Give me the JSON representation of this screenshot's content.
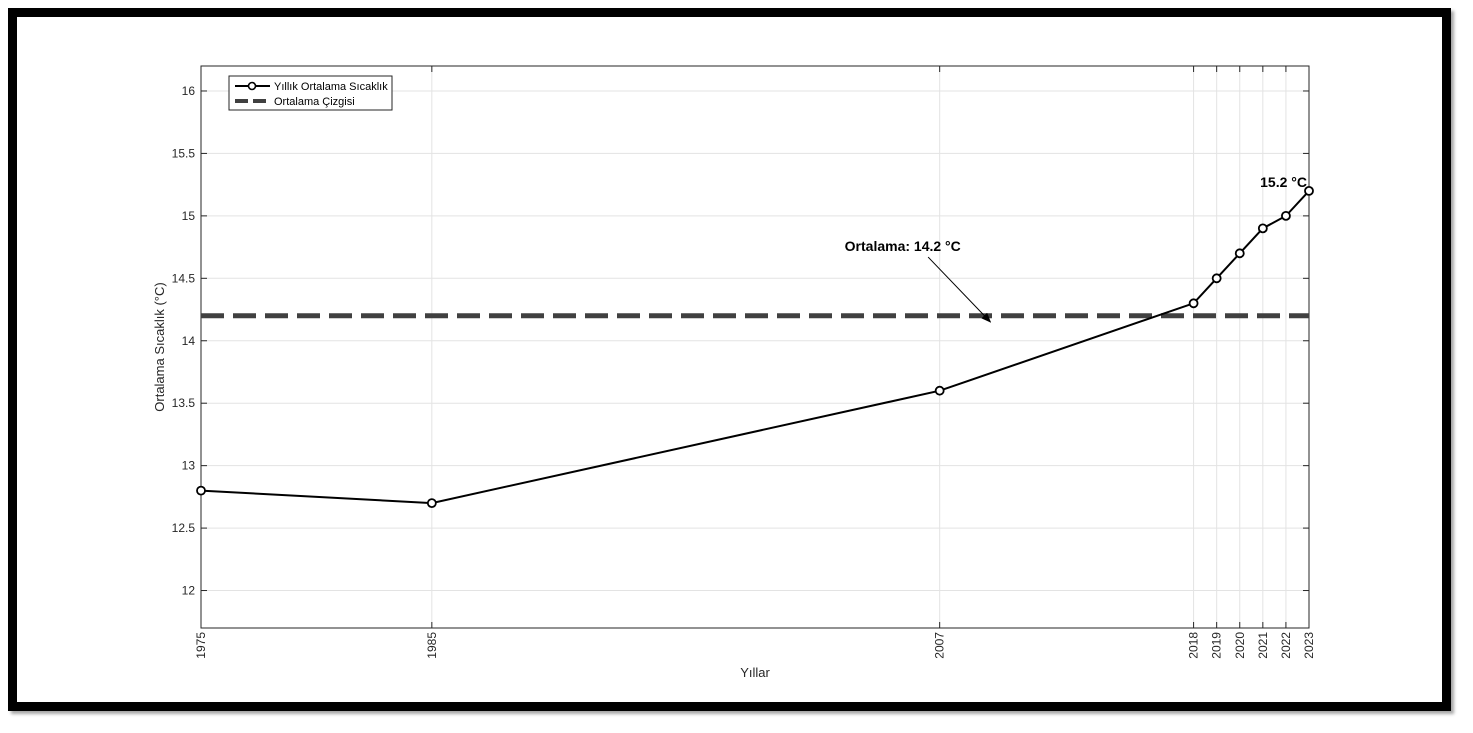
{
  "chart_data": {
    "type": "line",
    "title": "",
    "xlabel": "Yıllar",
    "ylabel": "Ortalama Sıcaklık (°C)",
    "x": [
      1975,
      1985,
      2007,
      2018,
      2019,
      2020,
      2021,
      2022,
      2023
    ],
    "x_tick_labels": [
      "1975",
      "1985",
      "2007",
      "2018",
      "2019",
      "2020",
      "2021",
      "2022",
      "2023"
    ],
    "xlim": [
      1975,
      2023
    ],
    "ylim": [
      11.7,
      16.2
    ],
    "y_ticks": [
      12,
      12.5,
      13,
      13.5,
      14,
      14.5,
      15,
      15.5,
      16
    ],
    "y_tick_labels": [
      "12",
      "12.5",
      "13",
      "13.5",
      "14",
      "14.5",
      "15",
      "15.5",
      "16"
    ],
    "grid": true,
    "legend_position": "top-left",
    "series": [
      {
        "name": "Yıllık Ortalama Sıcaklık",
        "style": "solid-circle-markers",
        "color": "#000000",
        "values": [
          12.8,
          12.7,
          13.6,
          14.3,
          14.5,
          14.7,
          14.9,
          15.0,
          15.2
        ]
      },
      {
        "name": "Ortalama Çizgisi",
        "style": "dashed",
        "color": "#404040",
        "value": 14.2
      }
    ],
    "annotations": [
      {
        "text": "Ortalama: 14.2 °C",
        "arrow_target": {
          "x": 2009.2,
          "y": 14.15
        }
      },
      {
        "text": "15.2 °C",
        "target": {
          "x": 2023,
          "y": 15.2
        }
      }
    ]
  }
}
